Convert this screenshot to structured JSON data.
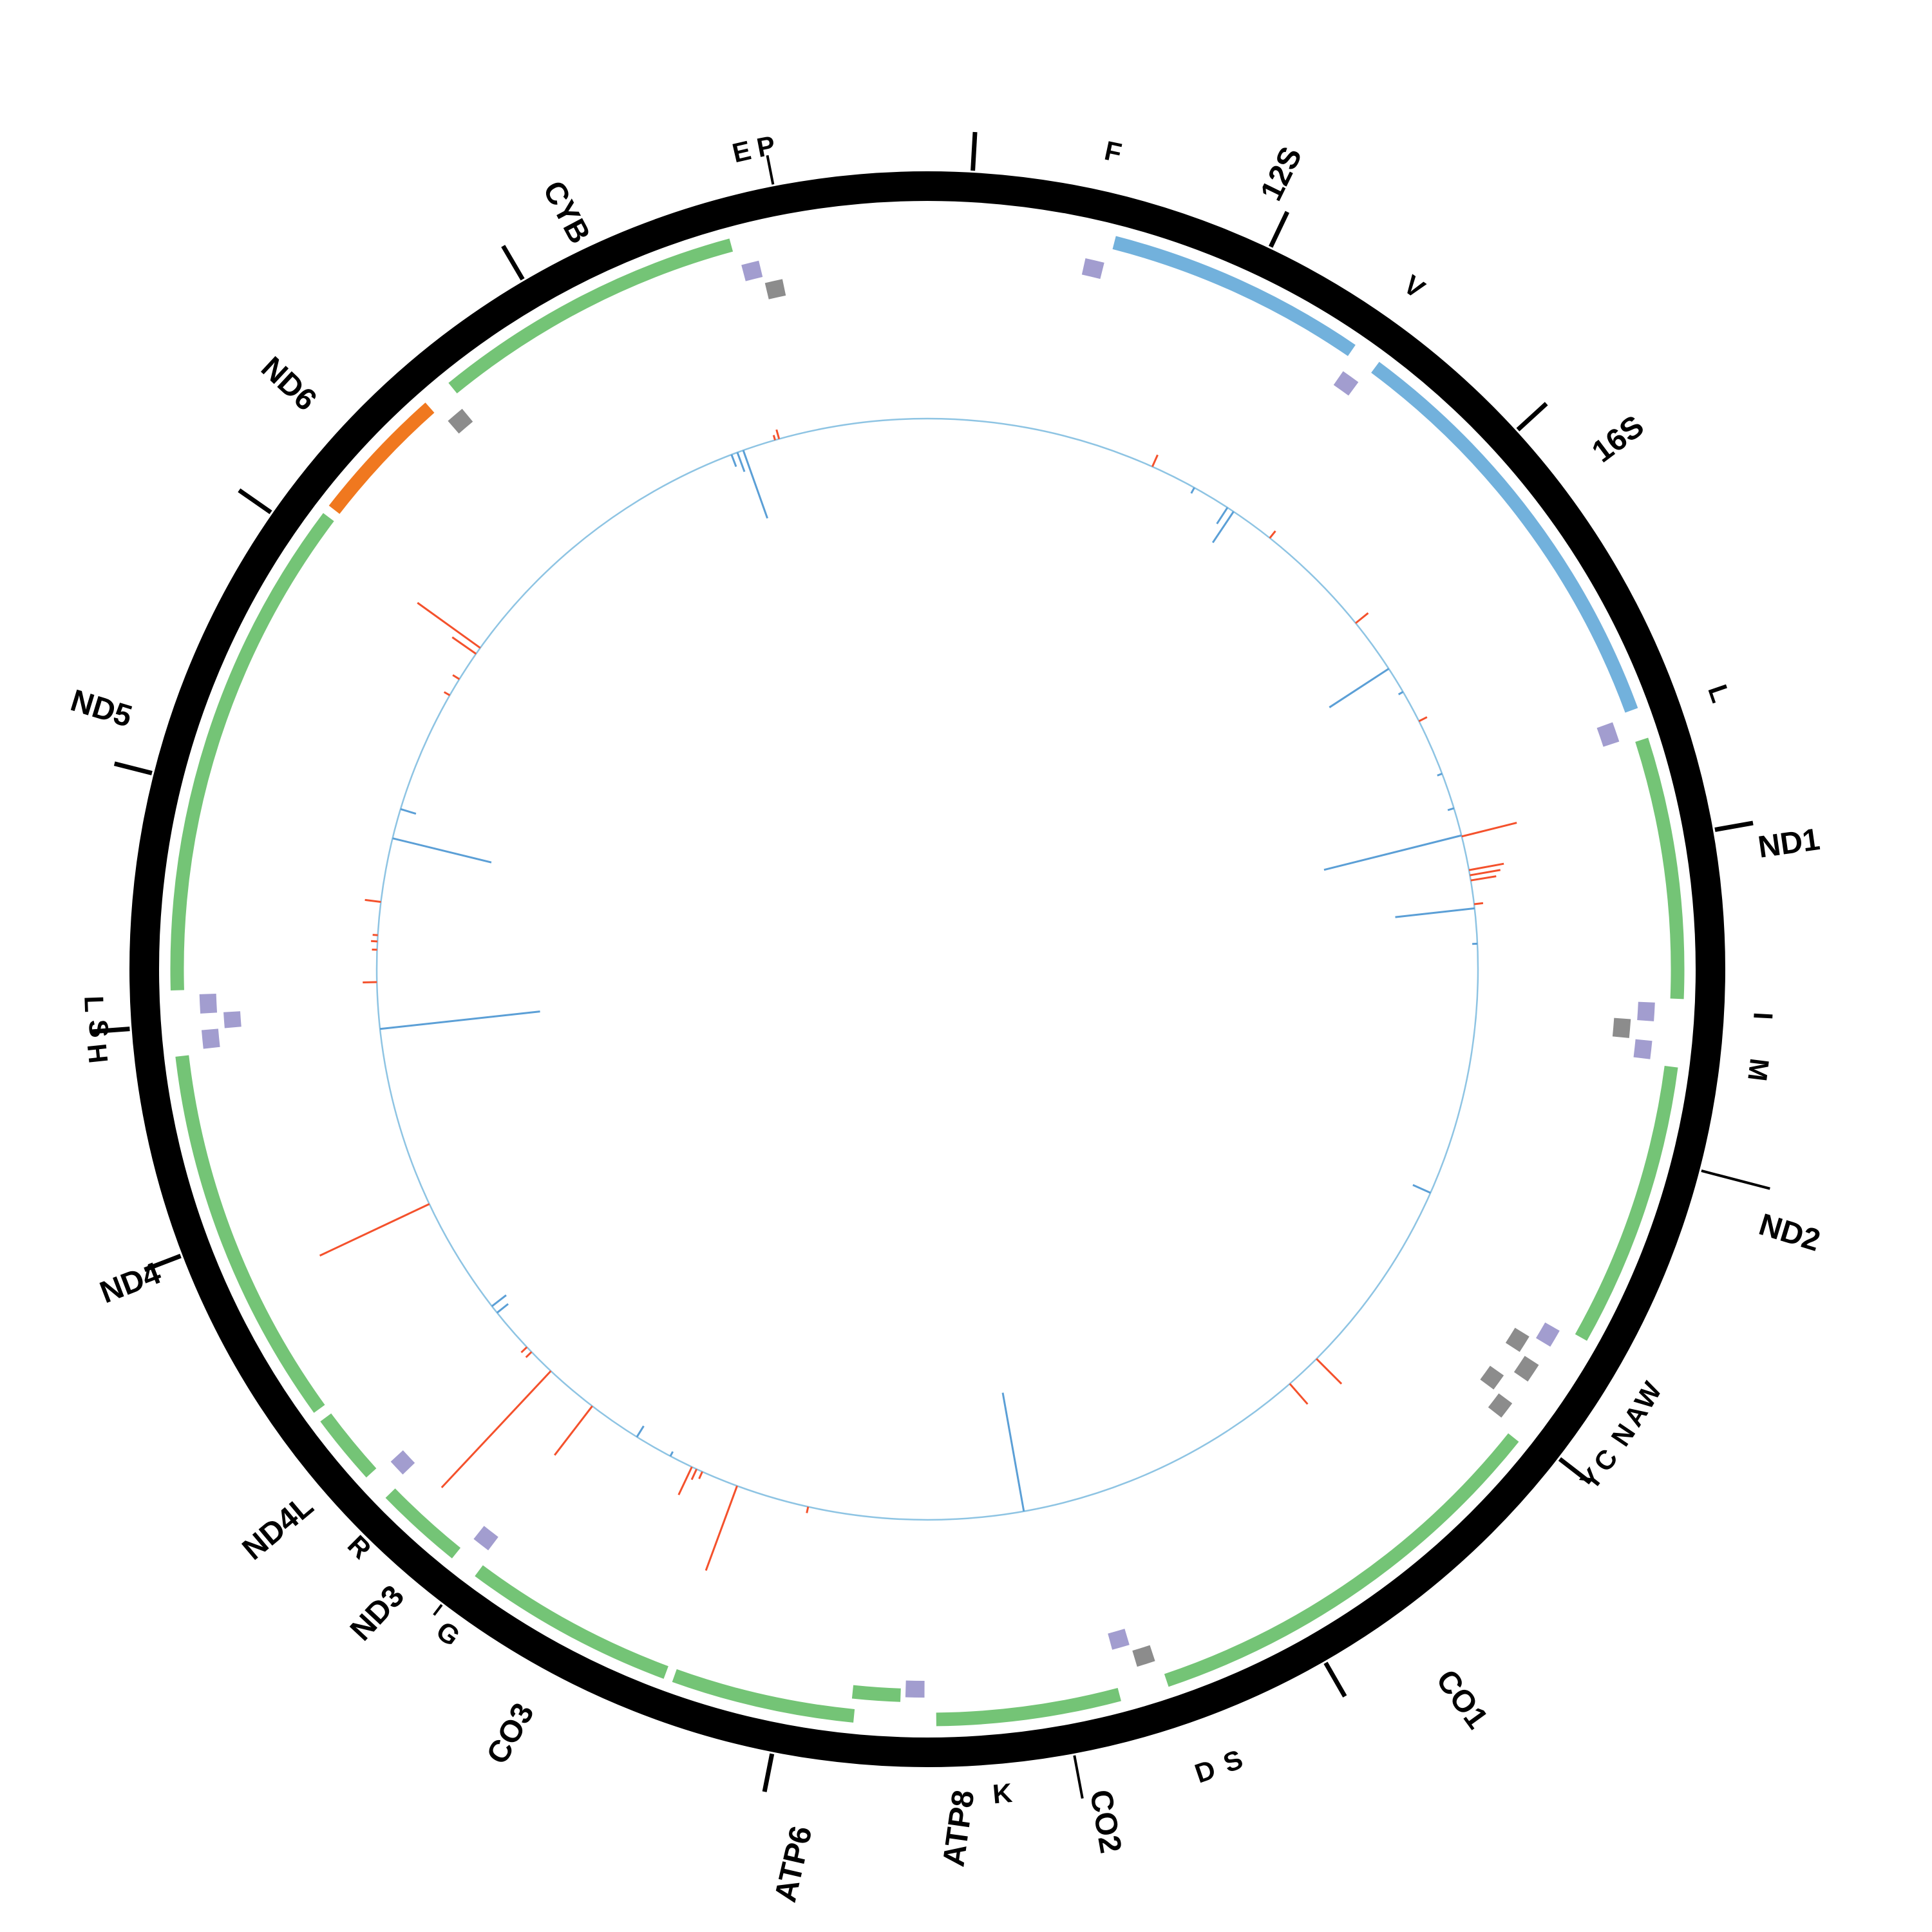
{
  "chart_data": {
    "type": "circular-genome-map",
    "genome_length_bp": 16569,
    "grid": "off",
    "legend": "none",
    "colors": {
      "ring": "#000000",
      "protein_gene": "#74c476",
      "rrna_gene": "#72b1dc",
      "reverse_gene": "#f0781f",
      "trna_forward": "#a29dcf",
      "trna_reverse": "#8c8c8c",
      "signal_baseline": "#8ec4e3",
      "signal_inward": "#5b9fd6",
      "signal_outward": "#f4512c",
      "tick": "#000000",
      "label": "#000000"
    },
    "features": [
      {
        "name": "trna-F",
        "label": "F",
        "start": 577,
        "end": 647,
        "type": "tRNA",
        "strand": "+",
        "slot": 0,
        "label_angle": 12.8,
        "label_radius": 1302,
        "label_rot": 12
      },
      {
        "name": "rrna-12S",
        "label": "12S",
        "start": 648,
        "end": 1601,
        "type": "rRNA",
        "strand": "+",
        "slot": 0,
        "label_angle": 24.0,
        "label_radius": 1352,
        "label_rot": -64
      },
      {
        "name": "trna-V",
        "label": "V",
        "start": 1602,
        "end": 1670,
        "type": "tRNA",
        "strand": "+",
        "slot": 0,
        "label_angle": 35.5,
        "label_radius": 1302,
        "label_rot": 35
      },
      {
        "name": "rrna-16S",
        "label": "16S",
        "start": 1671,
        "end": 3229,
        "type": "rRNA",
        "strand": "+",
        "slot": 0,
        "label_angle": 52.5,
        "label_radius": 1352,
        "label_rot": -37
      },
      {
        "name": "trna-L1",
        "label": "L",
        "start": 3230,
        "end": 3304,
        "type": "tRNA",
        "strand": "+",
        "slot": 0,
        "label_angle": 70.8,
        "label_radius": 1302,
        "label_rot": 71
      },
      {
        "name": "gene-ND1",
        "label": "ND1",
        "start": 3307,
        "end": 4262,
        "type": "protein",
        "strand": "+",
        "slot": 0,
        "label_angle": 81.7,
        "label_radius": 1352,
        "label_rot": -8
      },
      {
        "name": "trna-I",
        "label": "I",
        "start": 4263,
        "end": 4331,
        "type": "tRNA",
        "strand": "+",
        "slot": 0,
        "label_angle": 93.2,
        "label_radius": 1300,
        "label_rot": 93
      },
      {
        "name": "trna-Q",
        "label": "",
        "start": 4329,
        "end": 4400,
        "type": "tRNA",
        "strand": "-",
        "slot": 1,
        "label_angle": null,
        "label_radius": null,
        "label_rot": null
      },
      {
        "name": "trna-M",
        "label": "M",
        "start": 4402,
        "end": 4469,
        "type": "tRNA",
        "strand": "+",
        "slot": 0,
        "label_angle": 96.9,
        "label_radius": 1300,
        "label_rot": 97
      },
      {
        "name": "gene-ND2",
        "label": "ND2",
        "start": 4470,
        "end": 5511,
        "type": "protein",
        "strand": "+",
        "slot": 0,
        "label_angle": 107.0,
        "label_radius": 1400,
        "label_rot": 17
      },
      {
        "name": "trna-W",
        "label": "W",
        "start": 5512,
        "end": 5579,
        "type": "tRNA",
        "strand": "+",
        "slot": 0,
        "label_angle": 120.6,
        "label_radius": 1300,
        "label_rot": -59
      },
      {
        "name": "trna-A",
        "label": "A",
        "start": 5587,
        "end": 5655,
        "type": "tRNA",
        "strand": "-",
        "slot": 1,
        "label_angle": 122.2,
        "label_radius": 1300,
        "label_rot": -58
      },
      {
        "name": "trna-N",
        "label": "N",
        "start": 5657,
        "end": 5729,
        "type": "tRNA",
        "strand": "-",
        "slot": 0,
        "label_angle": 123.8,
        "label_radius": 1300,
        "label_rot": -56
      },
      {
        "name": "trna-C",
        "label": "C",
        "start": 5761,
        "end": 5826,
        "type": "tRNA",
        "strand": "-",
        "slot": 1,
        "label_angle": 125.9,
        "label_radius": 1300,
        "label_rot": -54
      },
      {
        "name": "trna-Y",
        "label": "Y",
        "start": 5826,
        "end": 5891,
        "type": "tRNA",
        "strand": "-",
        "slot": 0,
        "label_angle": 127.5,
        "label_radius": 1300,
        "label_rot": -52
      },
      {
        "name": "gene-CO1",
        "label": "CO1",
        "start": 5904,
        "end": 7445,
        "type": "protein",
        "strand": "+",
        "slot": 0,
        "label_angle": 143.8,
        "label_radius": 1405,
        "label_rot": 54
      },
      {
        "name": "trna-S1",
        "label": "S",
        "start": 7446,
        "end": 7514,
        "type": "tRNA",
        "strand": "-",
        "slot": 0,
        "label_angle": 158.9,
        "label_radius": 1318,
        "label_rot": -21
      },
      {
        "name": "trna-D",
        "label": "D",
        "start": 7518,
        "end": 7585,
        "type": "tRNA",
        "strand": "+",
        "slot": 1,
        "label_angle": 160.9,
        "label_radius": 1318,
        "label_rot": -19
      },
      {
        "name": "gene-CO2",
        "label": "CO2",
        "start": 7586,
        "end": 8269,
        "type": "protein",
        "strand": "+",
        "slot": 0,
        "label_angle": 168.2,
        "label_radius": 1352,
        "label_rot": 80
      },
      {
        "name": "trna-K",
        "label": "K",
        "start": 8295,
        "end": 8364,
        "type": "tRNA",
        "strand": "+",
        "slot": 0,
        "label_angle": 174.8,
        "label_radius": 1285,
        "label_rot": -5
      },
      {
        "name": "gene-ATP8",
        "label": "ATP8",
        "start": 8366,
        "end": 8572,
        "type": "protein",
        "strand": "+",
        "slot": 1,
        "label_angle": 177.9,
        "label_radius": 1335,
        "label_rot": -82
      },
      {
        "name": "gene-ATP6",
        "label": "ATP6",
        "start": 8527,
        "end": 9207,
        "type": "protein",
        "strand": "+",
        "slot": 0,
        "label_angle": 188.5,
        "label_radius": 1405,
        "label_rot": -77
      },
      {
        "name": "gene-CO3",
        "label": "CO3",
        "start": 9207,
        "end": 9990,
        "type": "protein",
        "strand": "+",
        "slot": 0,
        "label_angle": 208.6,
        "label_radius": 1352,
        "label_rot": -61
      },
      {
        "name": "trna-G",
        "label": "G",
        "start": 9991,
        "end": 10058,
        "type": "tRNA",
        "strand": "+",
        "slot": 0,
        "label_angle": 215.8,
        "label_radius": 1272,
        "label_rot": 36
      },
      {
        "name": "gene-ND3",
        "label": "ND3",
        "start": 10059,
        "end": 10404,
        "type": "protein",
        "strand": "+",
        "slot": 0,
        "label_angle": 220.5,
        "label_radius": 1315,
        "label_rot": -47
      },
      {
        "name": "trna-R",
        "label": "R",
        "start": 10405,
        "end": 10469,
        "type": "tRNA",
        "strand": "+",
        "slot": 0,
        "label_angle": 224.5,
        "label_radius": 1258,
        "label_rot": 45
      },
      {
        "name": "gene-ND4L",
        "label": "ND4L",
        "start": 10470,
        "end": 10754,
        "type": "protein",
        "strand": "+",
        "slot": 0,
        "label_angle": 229.3,
        "label_radius": 1330,
        "label_rot": -40
      },
      {
        "name": "gene-ND4",
        "label": "ND4",
        "start": 10760,
        "end": 12137,
        "type": "protein",
        "strand": "+",
        "slot": 0,
        "label_angle": 248.5,
        "label_radius": 1330,
        "label_rot": -21
      },
      {
        "name": "trna-H",
        "label": "H",
        "start": 12138,
        "end": 12206,
        "type": "tRNA",
        "strand": "+",
        "slot": 0,
        "label_angle": 264.2,
        "label_radius": 1295,
        "label_rot": 84
      },
      {
        "name": "trna-S2",
        "label": "S",
        "start": 12207,
        "end": 12265,
        "type": "tRNA",
        "strand": "+",
        "slot": 1,
        "label_angle": 265.9,
        "label_radius": 1290,
        "label_rot": 86
      },
      {
        "name": "trna-L2",
        "label": "L",
        "start": 12266,
        "end": 12336,
        "type": "tRNA",
        "strand": "+",
        "slot": 0,
        "label_angle": 267.6,
        "label_radius": 1295,
        "label_rot": 88
      },
      {
        "name": "gene-ND5",
        "label": "ND5",
        "start": 12337,
        "end": 14148,
        "type": "protein",
        "strand": "+",
        "slot": 0,
        "label_angle": 287.5,
        "label_radius": 1345,
        "label_rot": 17
      },
      {
        "name": "gene-ND6",
        "label": "ND6",
        "start": 14149,
        "end": 14673,
        "type": "reverse",
        "strand": "-",
        "slot": 0,
        "label_angle": 312.5,
        "label_radius": 1345,
        "label_rot": 43
      },
      {
        "name": "trna-E",
        "label": "E",
        "start": 14674,
        "end": 14742,
        "type": "tRNA",
        "strand": "-",
        "slot": 0,
        "label_angle": 347.2,
        "label_radius": 1302,
        "label_rot": -13
      },
      {
        "name": "gene-CYB",
        "label": "CYB",
        "start": 14747,
        "end": 15887,
        "type": "protein",
        "strand": "+",
        "slot": 0,
        "label_angle": 334.5,
        "label_radius": 1302,
        "label_rot": 62
      },
      {
        "name": "trna-T",
        "label": "",
        "start": 15888,
        "end": 15953,
        "type": "tRNA",
        "strand": "+",
        "slot": 0,
        "label_angle": null,
        "label_radius": null,
        "label_rot": null
      },
      {
        "name": "trna-P",
        "label": "P",
        "start": 15956,
        "end": 16023,
        "type": "tRNA",
        "strand": "-",
        "slot": 1,
        "label_angle": 348.9,
        "label_radius": 1302,
        "label_rot": -11
      }
    ],
    "axis_ticks_bp": [
      150,
      1170,
      2190,
      3680,
      5880,
      6910,
      8800,
      11460,
      12230,
      13080,
      14030,
      15170
    ],
    "label_leaders": [
      {
        "for": "P",
        "bp": 16057,
        "r2": 1288
      },
      {
        "for": "ND2",
        "bp": 4814,
        "r2": 1352
      },
      {
        "for": "CO2",
        "bp": 7797,
        "r2": 1310
      },
      {
        "for": "G",
        "bp": 10005,
        "r2": 1262
      }
    ],
    "signal_track": {
      "baseline_radius": 855,
      "inward_spikes_bp_len": [
        [
          1335,
          10
        ],
        [
          1520,
          30
        ],
        [
          1555,
          58
        ],
        [
          2620,
          110
        ],
        [
          2750,
          8
        ],
        [
          3185,
          8
        ],
        [
          3360,
          10
        ],
        [
          3495,
          220
        ],
        [
          3850,
          124
        ],
        [
          4020,
          8
        ],
        [
          5245,
          30
        ],
        [
          7820,
          187
        ],
        [
          9565,
          8
        ],
        [
          9750,
          20
        ],
        [
          10650,
          22
        ],
        [
          10690,
          28
        ],
        [
          12140,
          250
        ],
        [
          13060,
          158
        ],
        [
          13205,
          25
        ],
        [
          15610,
          20
        ],
        [
          15640,
          32
        ],
        [
          15670,
          112
        ]
      ],
      "outward_spikes_bp_len": [
        [
          1110,
          20
        ],
        [
          1770,
          14
        ],
        [
          2350,
          25
        ],
        [
          2910,
          14
        ],
        [
          3500,
          88
        ],
        [
          3665,
          55
        ],
        [
          3690,
          48
        ],
        [
          3715,
          40
        ],
        [
          3830,
          14
        ],
        [
          6215,
          55
        ],
        [
          6390,
          42
        ],
        [
          8860,
          10
        ],
        [
          9215,
          140
        ],
        [
          9395,
          12
        ],
        [
          9425,
          18
        ],
        [
          9450,
          48
        ],
        [
          10010,
          96
        ],
        [
          10270,
          248
        ],
        [
          10400,
          12
        ],
        [
          10432,
          12
        ],
        [
          11265,
          188
        ],
        [
          12365,
          22
        ],
        [
          12520,
          8
        ],
        [
          12560,
          10
        ],
        [
          12590,
          8
        ],
        [
          12750,
          25
        ],
        [
          13800,
          10
        ],
        [
          13890,
          12
        ],
        [
          14035,
          45
        ],
        [
          14070,
          120
        ],
        [
          15830,
          8
        ],
        [
          15850,
          15
        ]
      ]
    }
  }
}
